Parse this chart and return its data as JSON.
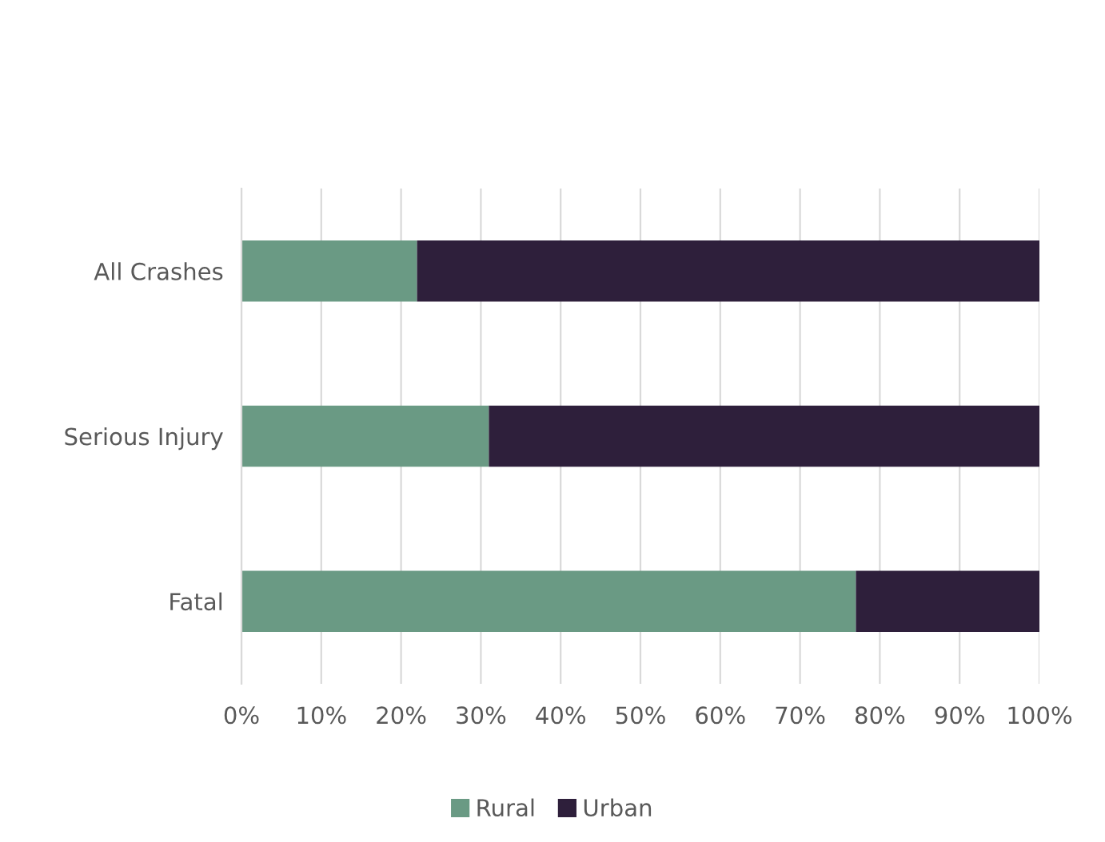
{
  "chart_data": {
    "type": "bar",
    "orientation": "horizontal",
    "stacked": true,
    "categories": [
      "All Crashes",
      "Serious Injury",
      "Fatal"
    ],
    "series": [
      {
        "name": "Rural",
        "color": "#6a9a84",
        "values": [
          22,
          31,
          77
        ]
      },
      {
        "name": "Urban",
        "color": "#2e1f3b",
        "values": [
          78,
          69,
          23
        ]
      }
    ],
    "xlim": [
      0,
      100
    ],
    "xticks": [
      {
        "value": 0,
        "label": "0%"
      },
      {
        "value": 10,
        "label": "10%"
      },
      {
        "value": 20,
        "label": "20%"
      },
      {
        "value": 30,
        "label": "30%"
      },
      {
        "value": 40,
        "label": "40%"
      },
      {
        "value": 50,
        "label": "50%"
      },
      {
        "value": 60,
        "label": "60%"
      },
      {
        "value": 70,
        "label": "70%"
      },
      {
        "value": 80,
        "label": "80%"
      },
      {
        "value": 90,
        "label": "90%"
      },
      {
        "value": 100,
        "label": "100%"
      }
    ],
    "grid": "x",
    "legend": "bottom"
  }
}
